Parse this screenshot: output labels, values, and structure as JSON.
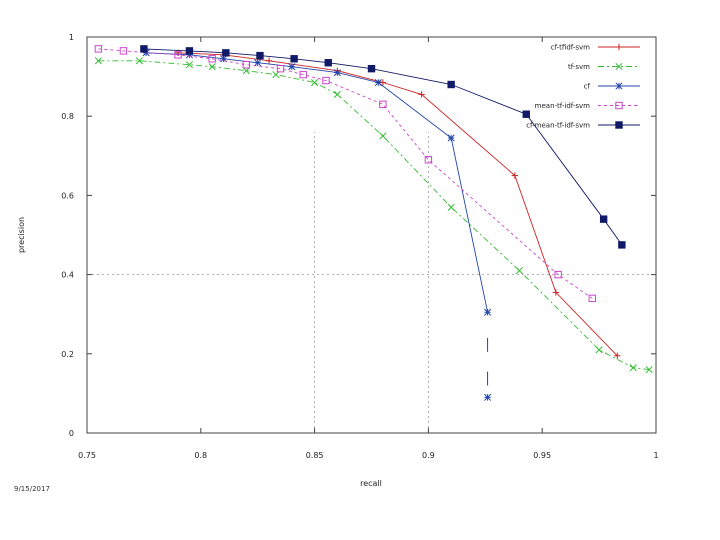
{
  "chart_data": {
    "type": "line",
    "title": "",
    "xlabel": "recall",
    "ylabel": "precision",
    "xlim": [
      0.75,
      1.0
    ],
    "ylim": [
      0,
      1.0
    ],
    "xticks": [
      0.75,
      0.8,
      0.85,
      0.9,
      0.95,
      1.0
    ],
    "xtick_labels": [
      "0.75",
      "0.8",
      "0.85",
      "0.9",
      "0.95",
      "1"
    ],
    "yticks": [
      0,
      0.2,
      0.4,
      0.6,
      0.8,
      1.0
    ],
    "ytick_labels": [
      "0",
      "0.2",
      "0.4",
      "0.6",
      "0.8",
      "1"
    ],
    "grid": "dashed reference lines at recall 0.85, 0.9 and precision 0.4",
    "reference_lines": {
      "x": [
        0.85,
        0.9
      ],
      "y": [
        0.4
      ]
    },
    "legend_position": "top-right",
    "series": [
      {
        "name": "cf-tfidf-svm",
        "color": "#cc2222",
        "marker": "plus",
        "dash": "",
        "x": [
          0.79,
          0.81,
          0.83,
          0.86,
          0.88,
          0.897,
          0.938,
          0.956,
          0.983
        ],
        "y": [
          0.96,
          0.955,
          0.94,
          0.915,
          0.885,
          0.855,
          0.65,
          0.355,
          0.195
        ]
      },
      {
        "name": "tf-svm",
        "color": "#33bb33",
        "marker": "cross",
        "dash": "6,3,2,3",
        "x": [
          0.755,
          0.773,
          0.795,
          0.805,
          0.82,
          0.833,
          0.85,
          0.86,
          0.88,
          0.91,
          0.94,
          0.975,
          0.99,
          0.997
        ],
        "y": [
          0.94,
          0.94,
          0.93,
          0.925,
          0.915,
          0.905,
          0.885,
          0.855,
          0.75,
          0.57,
          0.41,
          0.21,
          0.165,
          0.16
        ]
      },
      {
        "name": "cf",
        "color": "#2244aa",
        "marker": "star",
        "dash": "",
        "x": [
          0.776,
          0.795,
          0.81,
          0.825,
          0.84,
          0.86,
          0.878,
          0.91,
          0.926
        ],
        "y": [
          0.96,
          0.955,
          0.945,
          0.935,
          0.925,
          0.91,
          0.885,
          0.745,
          0.305
        ]
      },
      {
        "name": "mean-tf-idf-svm",
        "color": "#cc44cc",
        "marker": "square-open",
        "dash": "3,3",
        "x": [
          0.755,
          0.766,
          0.79,
          0.805,
          0.82,
          0.835,
          0.845,
          0.855,
          0.88,
          0.9,
          0.957,
          0.972
        ],
        "y": [
          0.97,
          0.965,
          0.955,
          0.945,
          0.93,
          0.92,
          0.905,
          0.89,
          0.83,
          0.69,
          0.4,
          0.34
        ]
      },
      {
        "name": "cf-mean-tf-idf-svm",
        "color": "#111a66",
        "marker": "square-filled",
        "dash": "",
        "x": [
          0.775,
          0.795,
          0.811,
          0.826,
          0.841,
          0.856,
          0.875,
          0.91,
          0.943,
          0.977,
          0.985
        ],
        "y": [
          0.97,
          0.965,
          0.96,
          0.953,
          0.945,
          0.935,
          0.92,
          0.88,
          0.805,
          0.54,
          0.475
        ]
      }
    ],
    "extra_points": {
      "color": "#2244aa",
      "x": [
        0.926
      ],
      "y": [
        0.09
      ],
      "error_segments": [
        {
          "x": 0.926,
          "y1": 0.205,
          "y2": 0.24
        },
        {
          "x": 0.926,
          "y1": 0.12,
          "y2": 0.155
        }
      ]
    }
  },
  "footer": {
    "text": "9/15/2017"
  }
}
